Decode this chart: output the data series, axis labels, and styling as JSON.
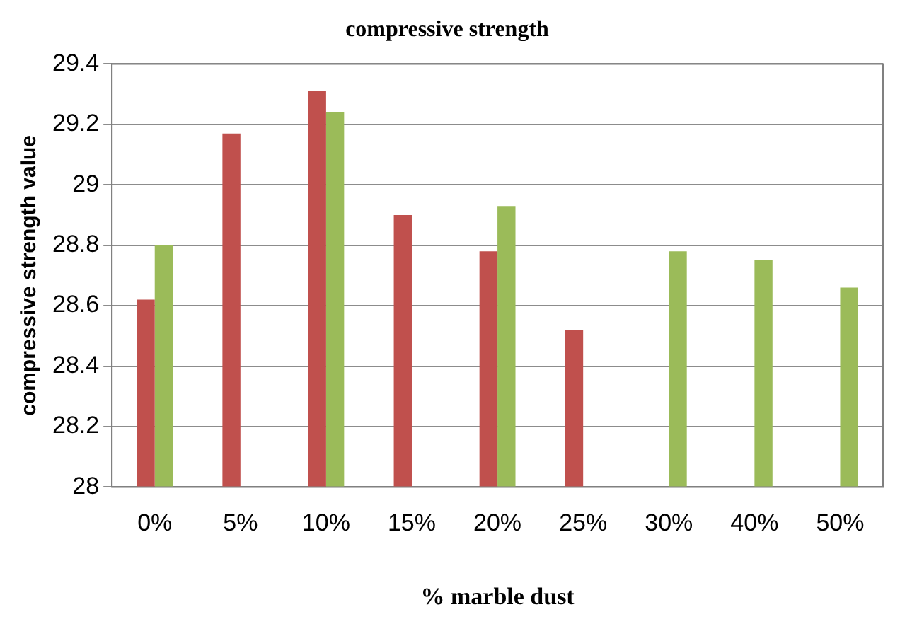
{
  "chart_data": {
    "type": "bar",
    "title": "compressive strength",
    "xlabel": "% marble dust",
    "ylabel": "compressive strength value",
    "categories": [
      "0%",
      "5%",
      "10%",
      "15%",
      "20%",
      "25%",
      "30%",
      "40%",
      "50%"
    ],
    "series": [
      {
        "color": "#c0504d",
        "values": [
          28.62,
          29.17,
          29.31,
          28.9,
          28.78,
          28.52,
          null,
          null,
          null
        ]
      },
      {
        "color": "#9bbb59",
        "values": [
          28.8,
          null,
          29.24,
          null,
          28.93,
          null,
          28.78,
          28.75,
          28.66
        ]
      }
    ],
    "ylim": [
      28,
      29.4
    ],
    "yticks": [
      28,
      28.2,
      28.4,
      28.6,
      28.8,
      29,
      29.2,
      29.4
    ],
    "grid": "y",
    "legend": false
  }
}
